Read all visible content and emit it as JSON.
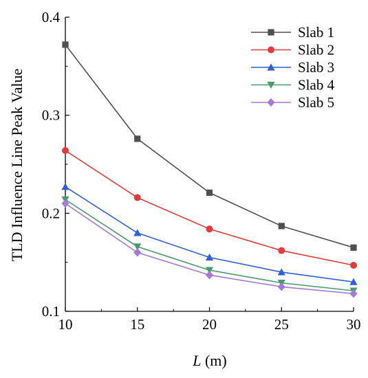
{
  "chart_data": {
    "type": "line",
    "x": [
      10,
      15,
      20,
      25,
      30
    ],
    "xlim": [
      10,
      30
    ],
    "ylim": [
      0.1,
      0.4
    ],
    "xticks": [
      "10",
      "15",
      "20",
      "25",
      "30"
    ],
    "yticks": [
      "0.1",
      "0.2",
      "0.3",
      "0.4"
    ],
    "xlabel_italic": "L",
    "xlabel_unit": " (m)",
    "ylabel": "TLD Influence Line Peak Value",
    "grid": false,
    "legend_position": "top-right",
    "series": [
      {
        "name": "Slab 1",
        "color": "#505050",
        "marker": "square",
        "values": [
          0.372,
          0.276,
          0.221,
          0.187,
          0.165
        ]
      },
      {
        "name": "Slab 2",
        "color": "#e03c3c",
        "marker": "circle",
        "values": [
          0.264,
          0.216,
          0.184,
          0.162,
          0.147
        ]
      },
      {
        "name": "Slab 3",
        "color": "#2f5fd6",
        "marker": "triangle-up",
        "values": [
          0.227,
          0.18,
          0.155,
          0.14,
          0.13
        ]
      },
      {
        "name": "Slab 4",
        "color": "#4a9a6e",
        "marker": "triangle-down",
        "values": [
          0.214,
          0.166,
          0.142,
          0.129,
          0.121
        ]
      },
      {
        "name": "Slab 5",
        "color": "#a47ad8",
        "marker": "diamond",
        "values": [
          0.21,
          0.16,
          0.137,
          0.125,
          0.118
        ]
      }
    ]
  }
}
